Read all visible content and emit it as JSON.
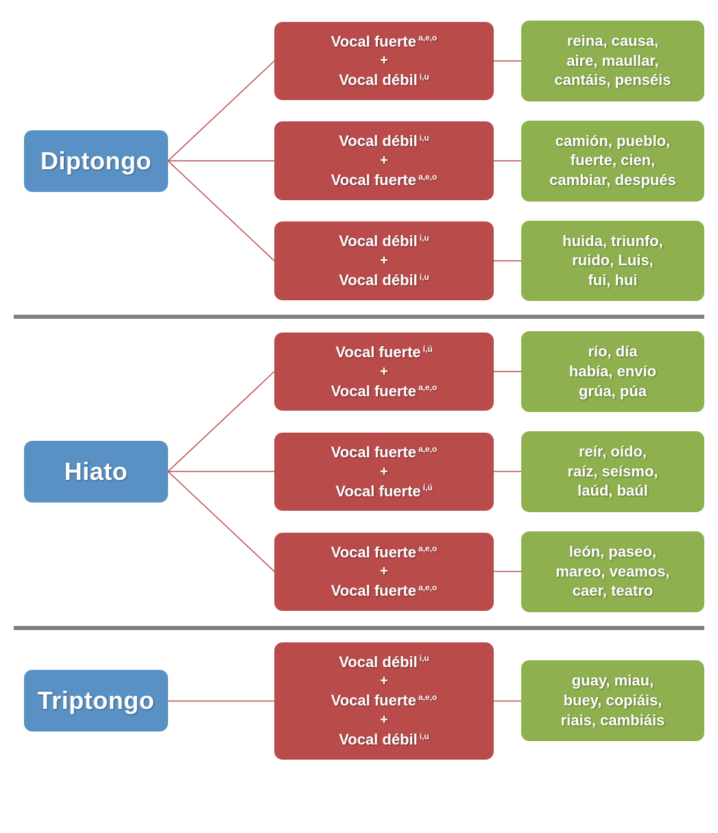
{
  "colors": {
    "root_bg": "#5991c4",
    "rule_bg": "#b94b4b",
    "example_bg": "#8fb04f",
    "divider": "#808080",
    "connector": "#b94b4b",
    "text": "#ffffff",
    "background": "#ffffff"
  },
  "layout": {
    "border_radius": 12,
    "root_fontsize": 36,
    "rule_fontsize": 22,
    "example_fontsize": 22,
    "sup_fontsize": 12
  },
  "sections": [
    {
      "id": "diptongo",
      "root": "Diptongo",
      "rules": [
        {
          "parts": [
            {
              "label": "Vocal fuerte",
              "sup": "a,e,o"
            },
            {
              "label": "Vocal débil",
              "sup": "i,u"
            }
          ],
          "examples": "reina, causa,\naire, maullar,\ncantáis, penséis"
        },
        {
          "parts": [
            {
              "label": "Vocal débil",
              "sup": "i,u"
            },
            {
              "label": "Vocal fuerte",
              "sup": "a,e,o"
            }
          ],
          "examples": "camión, pueblo,\nfuerte, cien,\ncambiar, después"
        },
        {
          "parts": [
            {
              "label": "Vocal débil",
              "sup": "i,u"
            },
            {
              "label": "Vocal débil",
              "sup": "i,u"
            }
          ],
          "examples": "huida, triunfo,\nruido, Luis,\nfui, hui"
        }
      ]
    },
    {
      "id": "hiato",
      "root": "Hiato",
      "rules": [
        {
          "parts": [
            {
              "label": "Vocal fuerte",
              "sup": "í,ú"
            },
            {
              "label": "Vocal fuerte",
              "sup": "a,e,o"
            }
          ],
          "examples": "río, día\nhabía, envío\ngrúa, púa"
        },
        {
          "parts": [
            {
              "label": "Vocal fuerte",
              "sup": "a,e,o"
            },
            {
              "label": "Vocal fuerte",
              "sup": "í,ú"
            }
          ],
          "examples": "reír, oído,\nraíz, seísmo,\nlaúd, baúl"
        },
        {
          "parts": [
            {
              "label": "Vocal fuerte",
              "sup": "a,e,o"
            },
            {
              "label": "Vocal fuerte",
              "sup": "a,e,o"
            }
          ],
          "examples": "león, paseo,\nmareo, veamos,\ncaer, teatro"
        }
      ]
    },
    {
      "id": "triptongo",
      "root": "Triptongo",
      "rules": [
        {
          "parts": [
            {
              "label": "Vocal débil",
              "sup": "i,u"
            },
            {
              "label": "Vocal fuerte",
              "sup": "a,e,o"
            },
            {
              "label": "Vocal débil",
              "sup": "i,u"
            }
          ],
          "examples": "guay, miau,\nbuey, copiáis,\nriais, cambiáis"
        }
      ]
    }
  ]
}
